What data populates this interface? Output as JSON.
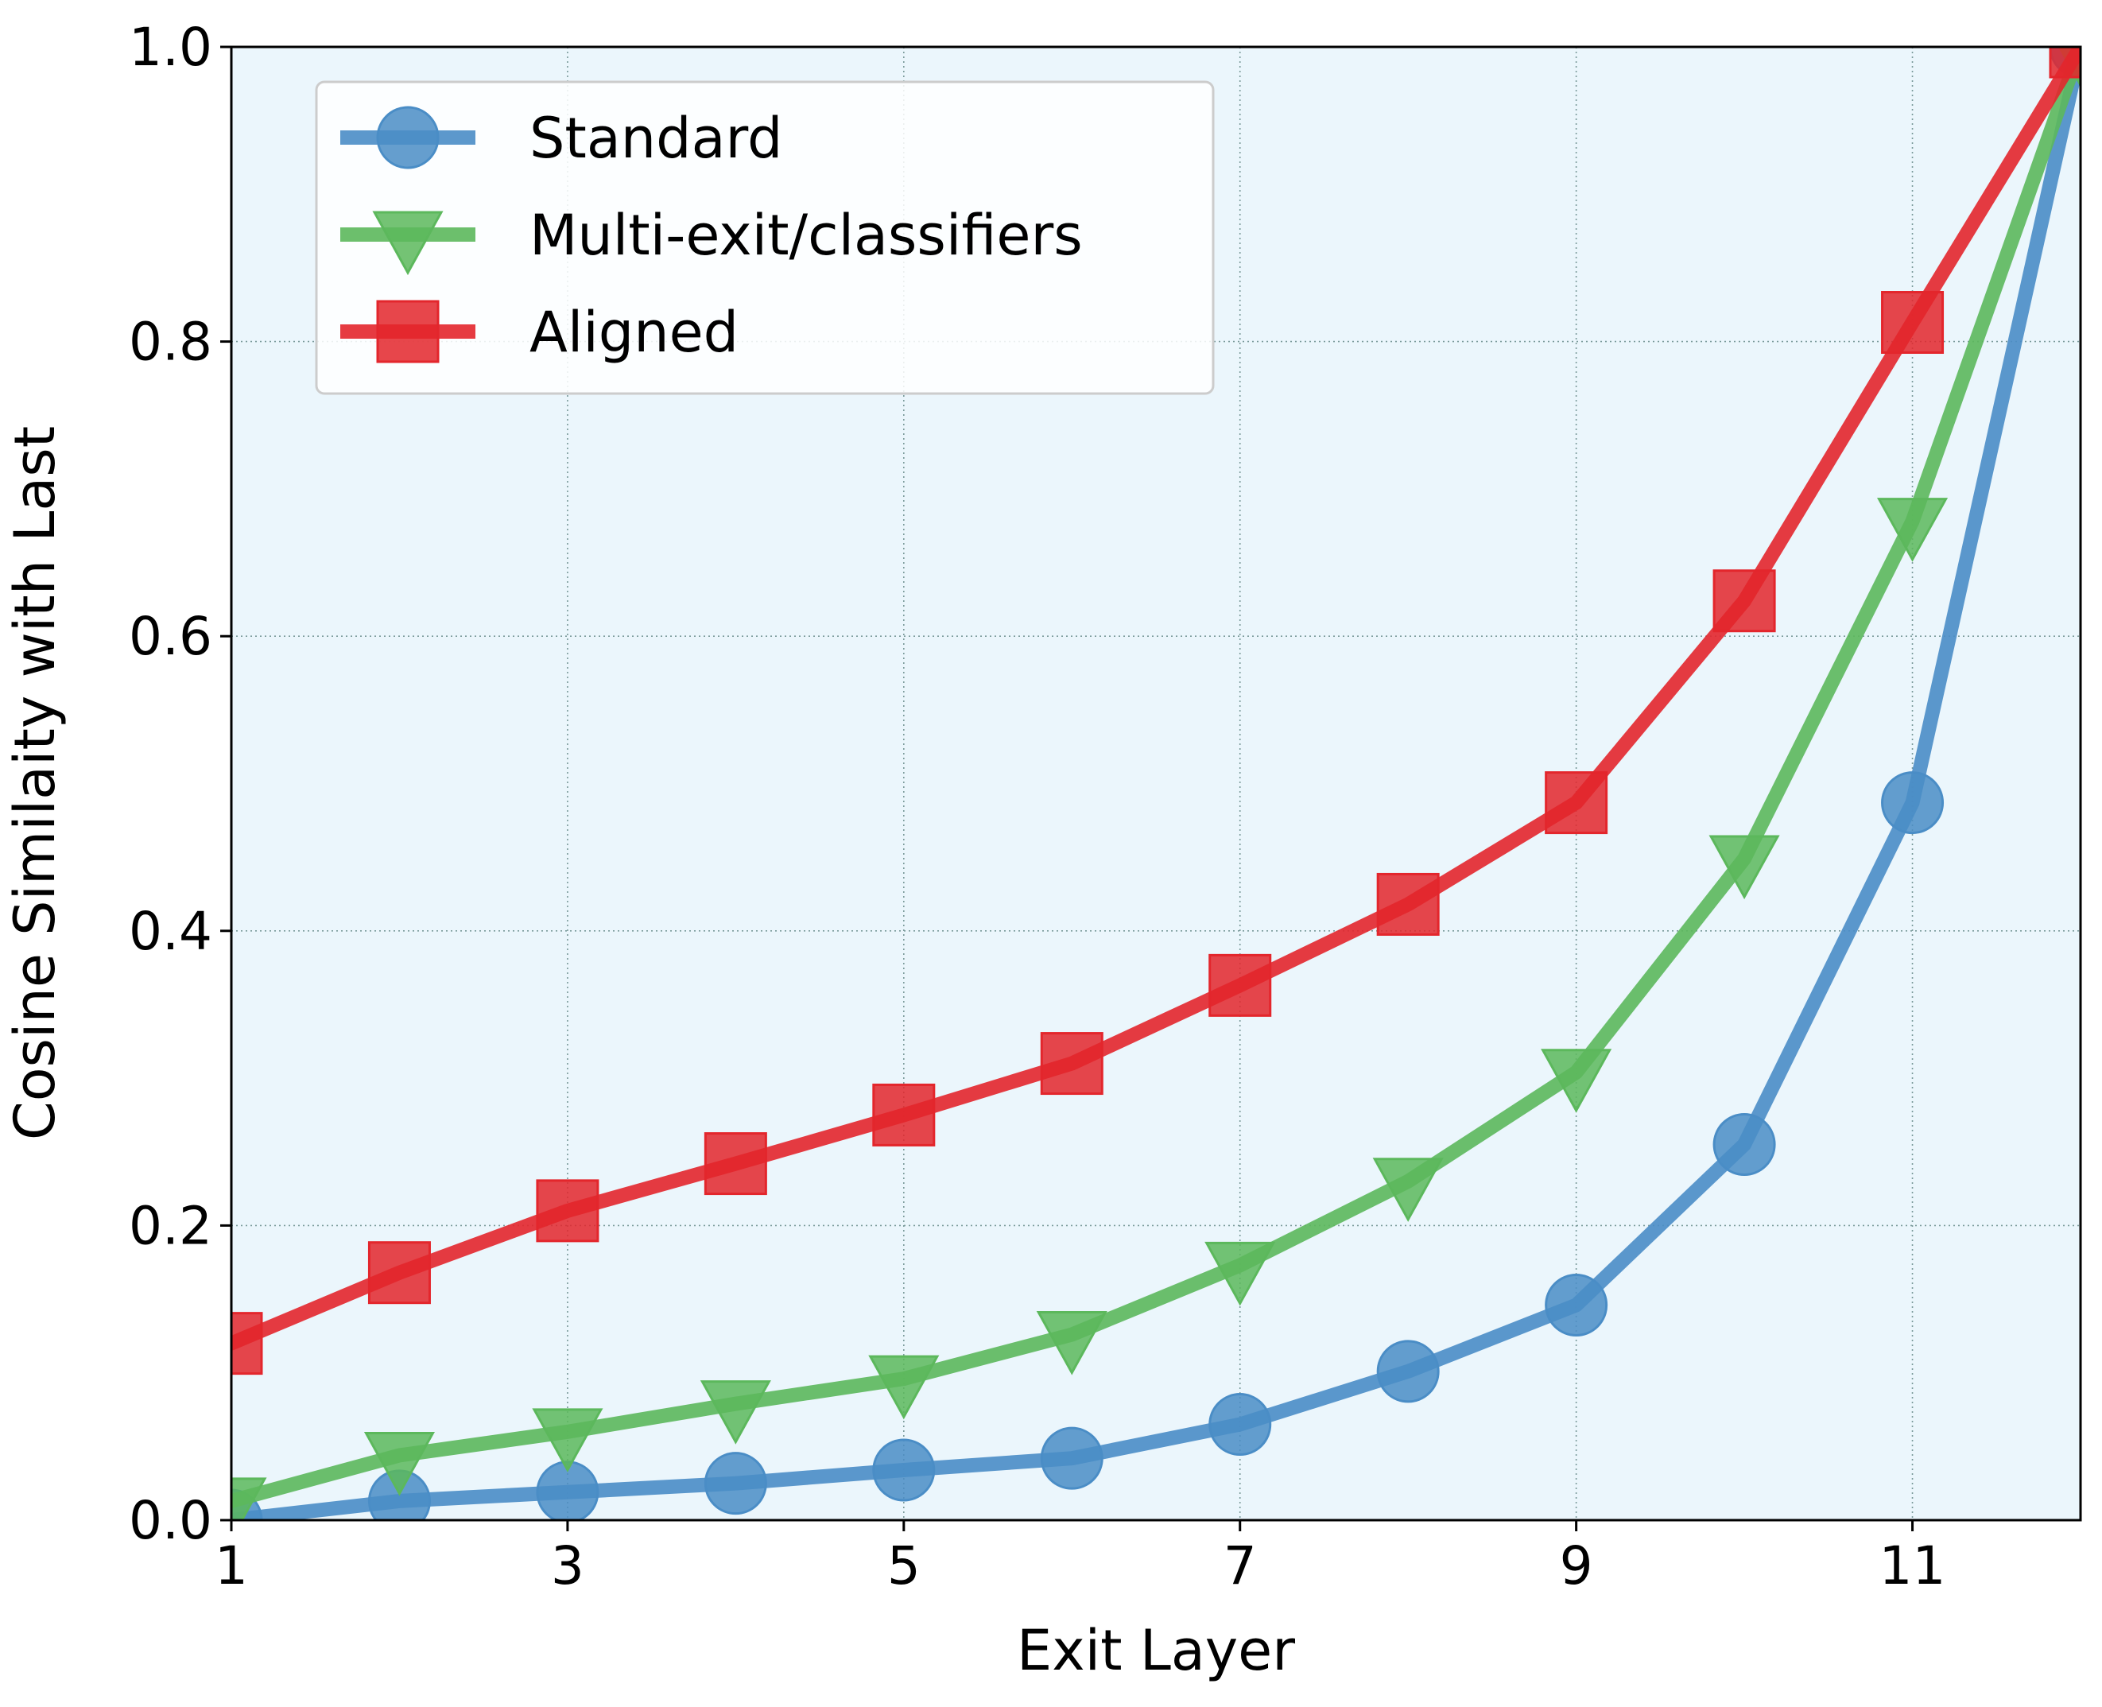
{
  "chart_data": {
    "type": "line",
    "title": "",
    "xlabel": "Exit Layer",
    "ylabel": "Cosine Similaity with Last",
    "x": [
      1,
      2,
      3,
      4,
      5,
      6,
      7,
      8,
      9,
      10,
      11,
      12
    ],
    "xlim": [
      1,
      12
    ],
    "ylim": [
      0.0,
      1.0
    ],
    "xticks": [
      "1",
      "3",
      "5",
      "7",
      "9",
      "11"
    ],
    "xtick_values": [
      1,
      3,
      5,
      7,
      9,
      11
    ],
    "yticks": [
      "0.0",
      "0.2",
      "0.4",
      "0.6",
      "0.8",
      "1.0"
    ],
    "ytick_values": [
      0.0,
      0.2,
      0.4,
      0.6,
      0.8,
      1.0
    ],
    "grid": true,
    "legend_position": "top-left",
    "background": "#ebf6fc",
    "series": [
      {
        "name": "Standard",
        "marker": "circle",
        "color": "#4a8dc6",
        "values": [
          0.0,
          0.013,
          0.019,
          0.025,
          0.034,
          0.042,
          0.065,
          0.101,
          0.146,
          0.255,
          0.487,
          1.0
        ]
      },
      {
        "name": "Multi-exit/classifiers",
        "marker": "triangle-down",
        "color": "#5cb85c",
        "values": [
          0.013,
          0.044,
          0.06,
          0.079,
          0.096,
          0.126,
          0.173,
          0.23,
          0.304,
          0.449,
          0.678,
          1.0
        ]
      },
      {
        "name": "Aligned",
        "marker": "square",
        "color": "#e3262c",
        "values": [
          0.12,
          0.168,
          0.21,
          0.242,
          0.275,
          0.31,
          0.363,
          0.418,
          0.487,
          0.624,
          0.813,
          1.0
        ]
      }
    ]
  }
}
